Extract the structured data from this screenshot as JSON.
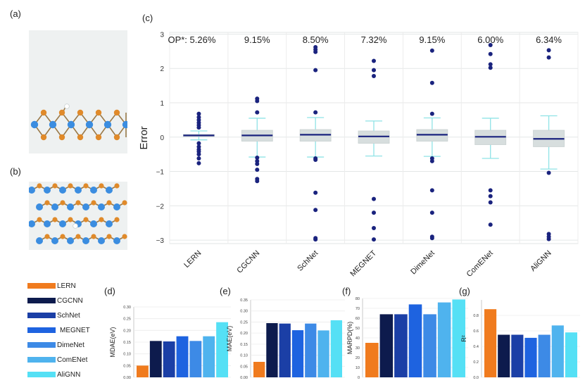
{
  "panels": {
    "a": "(a)",
    "b": "(b)",
    "c": "(c)",
    "d": "(d)",
    "e": "(e)",
    "f": "(f)",
    "g": "(g)"
  },
  "colors": {
    "LERN": "#f07b1e",
    "CGCNN": "#0d1b4d",
    "SchNet": "#1b3fa6",
    "MEGNET": "#1e63e0",
    "DimeNet": "#3d8ae6",
    "ComENet": "#4fb3ee",
    "AliGNN": "#55e0f5",
    "box_fill": "#d7dede",
    "median": "#1a237e",
    "whisker": "#8fe3e6",
    "outlier": "#1a237e",
    "atom_blue": "#3b8de0",
    "atom_orange": "#e08a2a"
  },
  "legend": [
    "LERN",
    "CGCNN",
    "SchNet",
    "MEGNET",
    "DimeNet",
    "ComENet",
    "AliGNN"
  ],
  "chart_data": [
    {
      "id": "c",
      "type": "box",
      "ylabel": "Error",
      "ylim": [
        -3.1,
        3.05
      ],
      "yticks": [
        -3,
        -2,
        -1,
        0,
        1,
        2,
        3
      ],
      "grid": true,
      "categories": [
        "LERN",
        "CGCNN",
        "SchNet",
        "MEGNET",
        "DimeNet",
        "ComENet",
        "AliGNN"
      ],
      "op_labels": [
        "OP*: 5.26%",
        "9.15%",
        "8.50%",
        "7.32%",
        "9.15%",
        "6.00%",
        "6.34%"
      ],
      "boxes": [
        {
          "q1": 0.02,
          "median": 0.05,
          "q3": 0.08,
          "wlo": -0.08,
          "whi": 0.18,
          "outliers": [
            0.68,
            0.58,
            0.5,
            0.42,
            0.35,
            0.28,
            -0.18,
            -0.28,
            -0.36,
            -0.42,
            -0.5,
            -0.62,
            -0.76
          ]
        },
        {
          "q1": -0.12,
          "median": 0.05,
          "q3": 0.2,
          "wlo": -0.58,
          "whi": 0.55,
          "outliers": [
            1.12,
            1.05,
            0.72,
            -0.6,
            -0.7,
            -0.78,
            -0.95,
            -1.22,
            -1.28
          ]
        },
        {
          "q1": -0.12,
          "median": 0.07,
          "q3": 0.22,
          "wlo": -0.58,
          "whi": 0.57,
          "outliers": [
            2.62,
            2.55,
            2.48,
            1.95,
            0.72,
            -0.62,
            -0.66,
            -1.62,
            -2.12,
            -2.94,
            -2.98
          ]
        },
        {
          "q1": -0.18,
          "median": 0.02,
          "q3": 0.18,
          "wlo": -0.55,
          "whi": 0.47,
          "outliers": [
            2.22,
            1.95,
            1.78,
            -1.8,
            -2.2,
            -2.65,
            -2.98
          ]
        },
        {
          "q1": -0.12,
          "median": 0.07,
          "q3": 0.22,
          "wlo": -0.56,
          "whi": 0.56,
          "outliers": [
            2.52,
            1.58,
            0.68,
            -0.62,
            -0.7,
            -1.55,
            -2.2,
            -2.9,
            -2.94
          ]
        },
        {
          "q1": -0.22,
          "median": 0.01,
          "q3": 0.2,
          "wlo": -0.62,
          "whi": 0.55,
          "outliers": [
            2.68,
            2.42,
            2.12,
            2.02,
            -1.55,
            -1.72,
            -1.9,
            -2.55
          ]
        },
        {
          "q1": -0.28,
          "median": -0.05,
          "q3": 0.2,
          "wlo": -0.93,
          "whi": 0.62,
          "outliers": [
            2.53,
            2.32,
            -1.04,
            -2.82,
            -2.9,
            -2.97
          ]
        }
      ]
    },
    {
      "id": "d",
      "type": "bar",
      "ylabel": "MDAE(eV)",
      "ylim": [
        0,
        0.3
      ],
      "yticks": [
        0,
        0.05,
        0.1,
        0.15,
        0.2,
        0.25,
        0.3
      ],
      "yticklabels": [
        "0.00",
        "0.05",
        "0.10",
        "0.15",
        "0.20",
        "0.25",
        "0.30"
      ],
      "categories": [
        "LERN",
        "CGCNN",
        "SchNet",
        "MEGNET",
        "DimeNet",
        "ComENet",
        "AliGNN"
      ],
      "values": [
        0.05,
        0.155,
        0.153,
        0.175,
        0.155,
        0.175,
        0.235
      ]
    },
    {
      "id": "e",
      "type": "bar",
      "ylabel": "MAE(eV)",
      "ylim": [
        0,
        0.35
      ],
      "yticks": [
        0,
        0.05,
        0.1,
        0.15,
        0.2,
        0.25,
        0.3,
        0.35
      ],
      "yticklabels": [
        "0.00",
        "0.05",
        "0.10",
        "0.15",
        "0.20",
        "0.25",
        "0.30",
        "0.35"
      ],
      "categories": [
        "LERN",
        "CGCNN",
        "SchNet",
        "MEGNET",
        "DimeNet",
        "ComENet",
        "AliGNN"
      ],
      "values": [
        0.07,
        0.245,
        0.243,
        0.213,
        0.243,
        0.212,
        0.258
      ]
    },
    {
      "id": "f",
      "type": "bar",
      "ylabel": "MARPD(%)",
      "ylim": [
        0,
        80
      ],
      "yticks": [
        0,
        10,
        20,
        30,
        40,
        50,
        60,
        70,
        80
      ],
      "yticklabels": [
        "0",
        "10",
        "20",
        "30",
        "40",
        "50",
        "60",
        "70",
        "80"
      ],
      "categories": [
        "LERN",
        "CGCNN",
        "SchNet",
        "MEGNET",
        "DimeNet",
        "ComENet",
        "AliGNN"
      ],
      "values": [
        35,
        64,
        64,
        74,
        64,
        76,
        79
      ]
    },
    {
      "id": "g",
      "type": "bar",
      "ylabel": "R²",
      "ylim": [
        0,
        1.0
      ],
      "yticks": [
        0,
        0.2,
        0.4,
        0.6,
        0.8
      ],
      "yticklabels": [
        "0.0",
        "0.2",
        "0.4",
        "0.6",
        "0.8"
      ],
      "categories": [
        "LERN",
        "CGCNN",
        "SchNet",
        "MEGNET",
        "DimeNet",
        "ComENet",
        "AliGNN"
      ],
      "values": [
        0.88,
        0.55,
        0.55,
        0.51,
        0.55,
        0.67,
        0.58
      ]
    }
  ]
}
